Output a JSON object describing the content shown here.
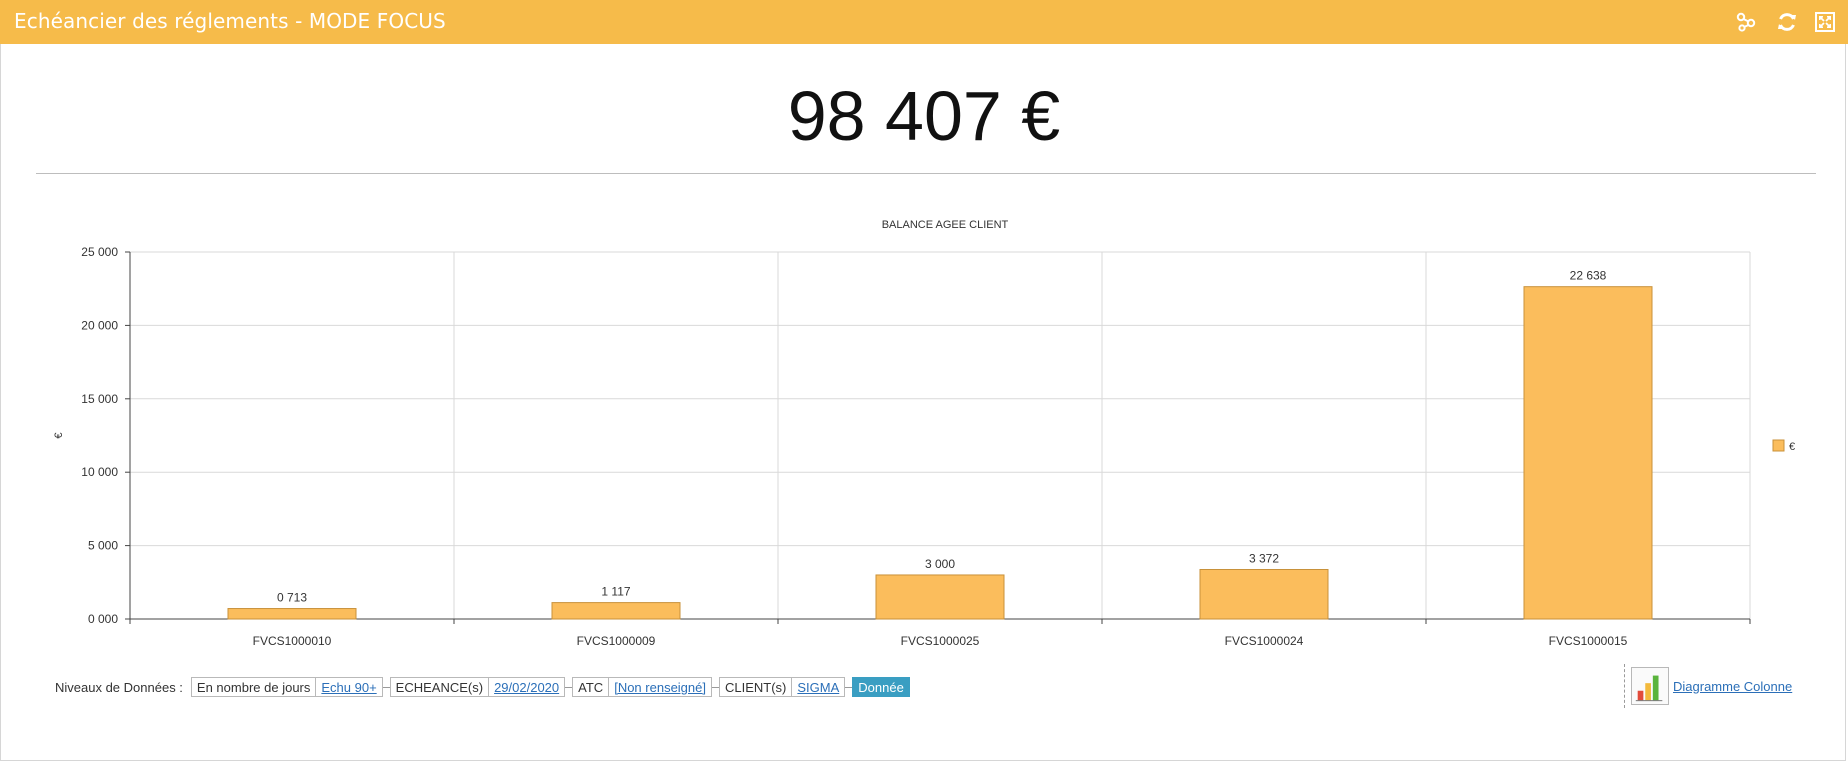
{
  "window": {
    "title": "Echéancier des réglements - MODE FOCUS",
    "icons": [
      "share-icon",
      "refresh-icon",
      "expand-icon"
    ]
  },
  "kpi": {
    "value": "98 407 €"
  },
  "chart_data": {
    "type": "bar",
    "title": "BALANCE AGEE CLIENT",
    "xlabel": "",
    "ylabel": "€",
    "categories": [
      "FVCS1000010",
      "FVCS1000009",
      "FVCS1000025",
      "FVCS1000024",
      "FVCS1000015"
    ],
    "series": [
      {
        "name": "€",
        "values": [
          713,
          1117,
          3000,
          3372,
          22638
        ]
      }
    ],
    "data_labels": [
      "0 713",
      "1 117",
      "3 000",
      "3 372",
      "22 638"
    ],
    "ylim": [
      0,
      25000
    ],
    "yticks": [
      0,
      5000,
      10000,
      15000,
      20000,
      25000
    ],
    "ytick_labels": [
      "0 000",
      "5 000",
      "10 000",
      "15 000",
      "20 000",
      "25 000"
    ],
    "grid": true,
    "legend": "right",
    "bar_color": "#fbbd5c",
    "bar_border": "#c8913a"
  },
  "breadcrumb": {
    "label": "Niveaux de Données :",
    "segments": [
      {
        "text": "En nombre de jours",
        "link": false
      },
      {
        "text": "Echu 90+",
        "link": true
      },
      {
        "text": "ECHEANCE(s)",
        "link": false
      },
      {
        "text": "29/02/2020",
        "link": true
      },
      {
        "text": "ATC",
        "link": false
      },
      {
        "text": "[Non renseigné]",
        "link": true
      },
      {
        "text": "CLIENT(s)",
        "link": false
      },
      {
        "text": "SIGMA",
        "link": true
      },
      {
        "text": "Donnée",
        "active": true
      }
    ]
  },
  "chart_type": {
    "label": "Diagramme Colonne",
    "icon": "column-chart-icon"
  },
  "colors": {
    "header": "#f6bb4a",
    "accent": "#3a9ec2",
    "link": "#2b6fb8"
  }
}
